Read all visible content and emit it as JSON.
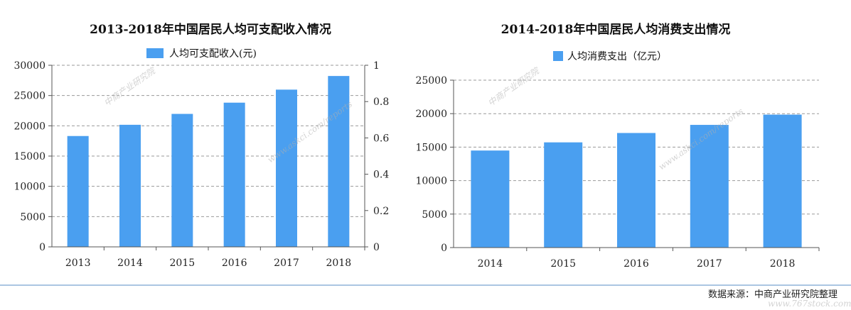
{
  "chart_data": [
    {
      "type": "bar",
      "title": "2013-2018年中国居民人均可支配收入情况",
      "categories": [
        "2013",
        "2014",
        "2015",
        "2016",
        "2017",
        "2018"
      ],
      "series": [
        {
          "name": "人均可支配收入(元)",
          "values": [
            18311,
            20167,
            21966,
            23821,
            25974,
            28228
          ]
        }
      ],
      "ylim": [
        0,
        30000
      ],
      "yticks": [
        "0",
        "5000",
        "10000",
        "15000",
        "20000",
        "25000",
        "30000"
      ],
      "y2lim": [
        0,
        1
      ],
      "y2ticks": [
        "0",
        "0.2",
        "0.4",
        "0.6",
        "0.8",
        "1"
      ],
      "grid": true,
      "legend": "top-center",
      "color": "#4a9ff0"
    },
    {
      "type": "bar",
      "title": "2014-2018年中国居民人均消费支出情况",
      "categories": [
        "2014",
        "2015",
        "2016",
        "2017",
        "2018"
      ],
      "series": [
        {
          "name": "人均消费支出（亿元）",
          "values": [
            14491,
            15712,
            17111,
            18322,
            19853
          ]
        }
      ],
      "ylim": [
        0,
        25000
      ],
      "yticks": [
        "0",
        "5000",
        "10000",
        "15000",
        "20000",
        "25000"
      ],
      "grid": true,
      "legend": "top-center",
      "color": "#4a9ff0"
    }
  ],
  "footer": {
    "source": "数据来源：中商产业研究院整理"
  },
  "watermarks": {
    "brand": "中商产业研究院",
    "site": "www.askci.com/reports",
    "corner": "www.767stock.com"
  }
}
